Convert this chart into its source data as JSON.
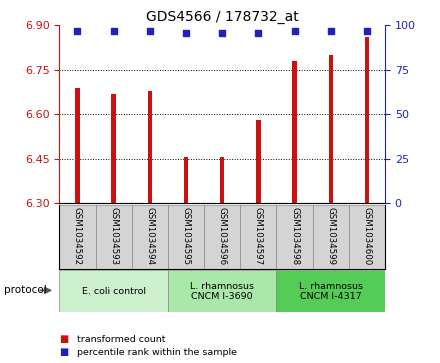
{
  "title": "GDS4566 / 178732_at",
  "samples": [
    "GSM1034592",
    "GSM1034593",
    "GSM1034594",
    "GSM1034595",
    "GSM1034596",
    "GSM1034597",
    "GSM1034598",
    "GSM1034599",
    "GSM1034600"
  ],
  "bar_values": [
    6.69,
    6.67,
    6.68,
    6.455,
    6.455,
    6.58,
    6.78,
    6.8,
    6.86
  ],
  "percentile_values": [
    97,
    97,
    97,
    96,
    96,
    96,
    97,
    97,
    97
  ],
  "bar_color": "#cc1111",
  "percentile_color": "#2222bb",
  "ylim": [
    6.3,
    6.9
  ],
  "ylim_right": [
    0,
    100
  ],
  "yticks_left": [
    6.3,
    6.45,
    6.6,
    6.75,
    6.9
  ],
  "yticks_right": [
    0,
    25,
    50,
    75,
    100
  ],
  "gridlines": [
    6.45,
    6.6,
    6.75
  ],
  "groups": [
    {
      "label": "E. coli control",
      "start": 0,
      "end": 3,
      "color": "#ccf0cc"
    },
    {
      "label": "L. rhamnosus\nCNCM I-3690",
      "start": 3,
      "end": 6,
      "color": "#aae8aa"
    },
    {
      "label": "L. rhamnosus\nCNCM I-4317",
      "start": 6,
      "end": 9,
      "color": "#55cc55"
    }
  ],
  "protocol_label": "protocol",
  "legend_bar_label": "transformed count",
  "legend_percentile_label": "percentile rank within the sample",
  "bar_width": 0.12,
  "label_bg_color": "#d4d4d4",
  "label_border_color": "#888888"
}
